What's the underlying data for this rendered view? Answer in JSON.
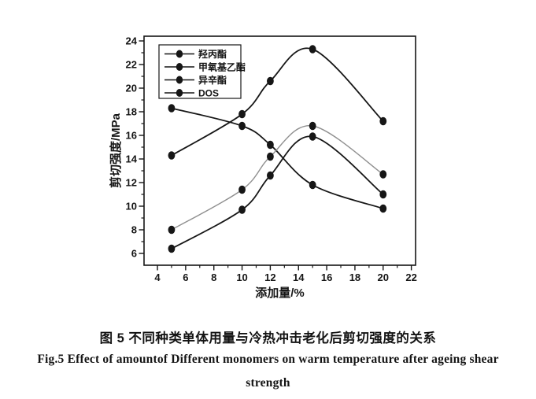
{
  "figure": {
    "caption_zh": "图 5 不同种类单体用量与冷热冲击老化后剪切强度的关系",
    "caption_en_line1": "Fig.5 Effect of amountof Different monomers on warm temperature after ageing shear",
    "caption_en_line2": "strength"
  },
  "colors": {
    "ink": "#161616",
    "paper": "#ffffff",
    "light_series": "#8f8f8f"
  },
  "chart_data": {
    "type": "line",
    "title": "",
    "xlabel": "添加量/%",
    "ylabel": "剪切强度/MPa",
    "x": [
      5,
      10,
      12,
      15,
      20
    ],
    "series": [
      {
        "name": "羟丙酯",
        "values": [
          14.3,
          17.8,
          20.6,
          23.3,
          17.2
        ],
        "color": "#161616"
      },
      {
        "name": "甲氧基乙酯",
        "values": [
          18.3,
          16.8,
          15.2,
          11.8,
          9.8
        ],
        "color": "#161616"
      },
      {
        "name": "异辛酯",
        "values": [
          8.0,
          11.4,
          14.2,
          16.8,
          12.7
        ],
        "color": "#8f8f8f"
      },
      {
        "name": "DOS",
        "values": [
          6.4,
          9.7,
          12.6,
          15.9,
          11.0
        ],
        "color": "#161616"
      }
    ],
    "x_ticks": [
      4,
      6,
      8,
      10,
      12,
      14,
      16,
      18,
      20,
      22
    ],
    "y_ticks": [
      6,
      8,
      10,
      12,
      14,
      16,
      18,
      20,
      22,
      24
    ],
    "xlim": [
      3.05,
      22.3
    ],
    "ylim": [
      5.0,
      24.4
    ],
    "grid": false,
    "legend_position": "top-left",
    "marker": "filled-circle"
  }
}
